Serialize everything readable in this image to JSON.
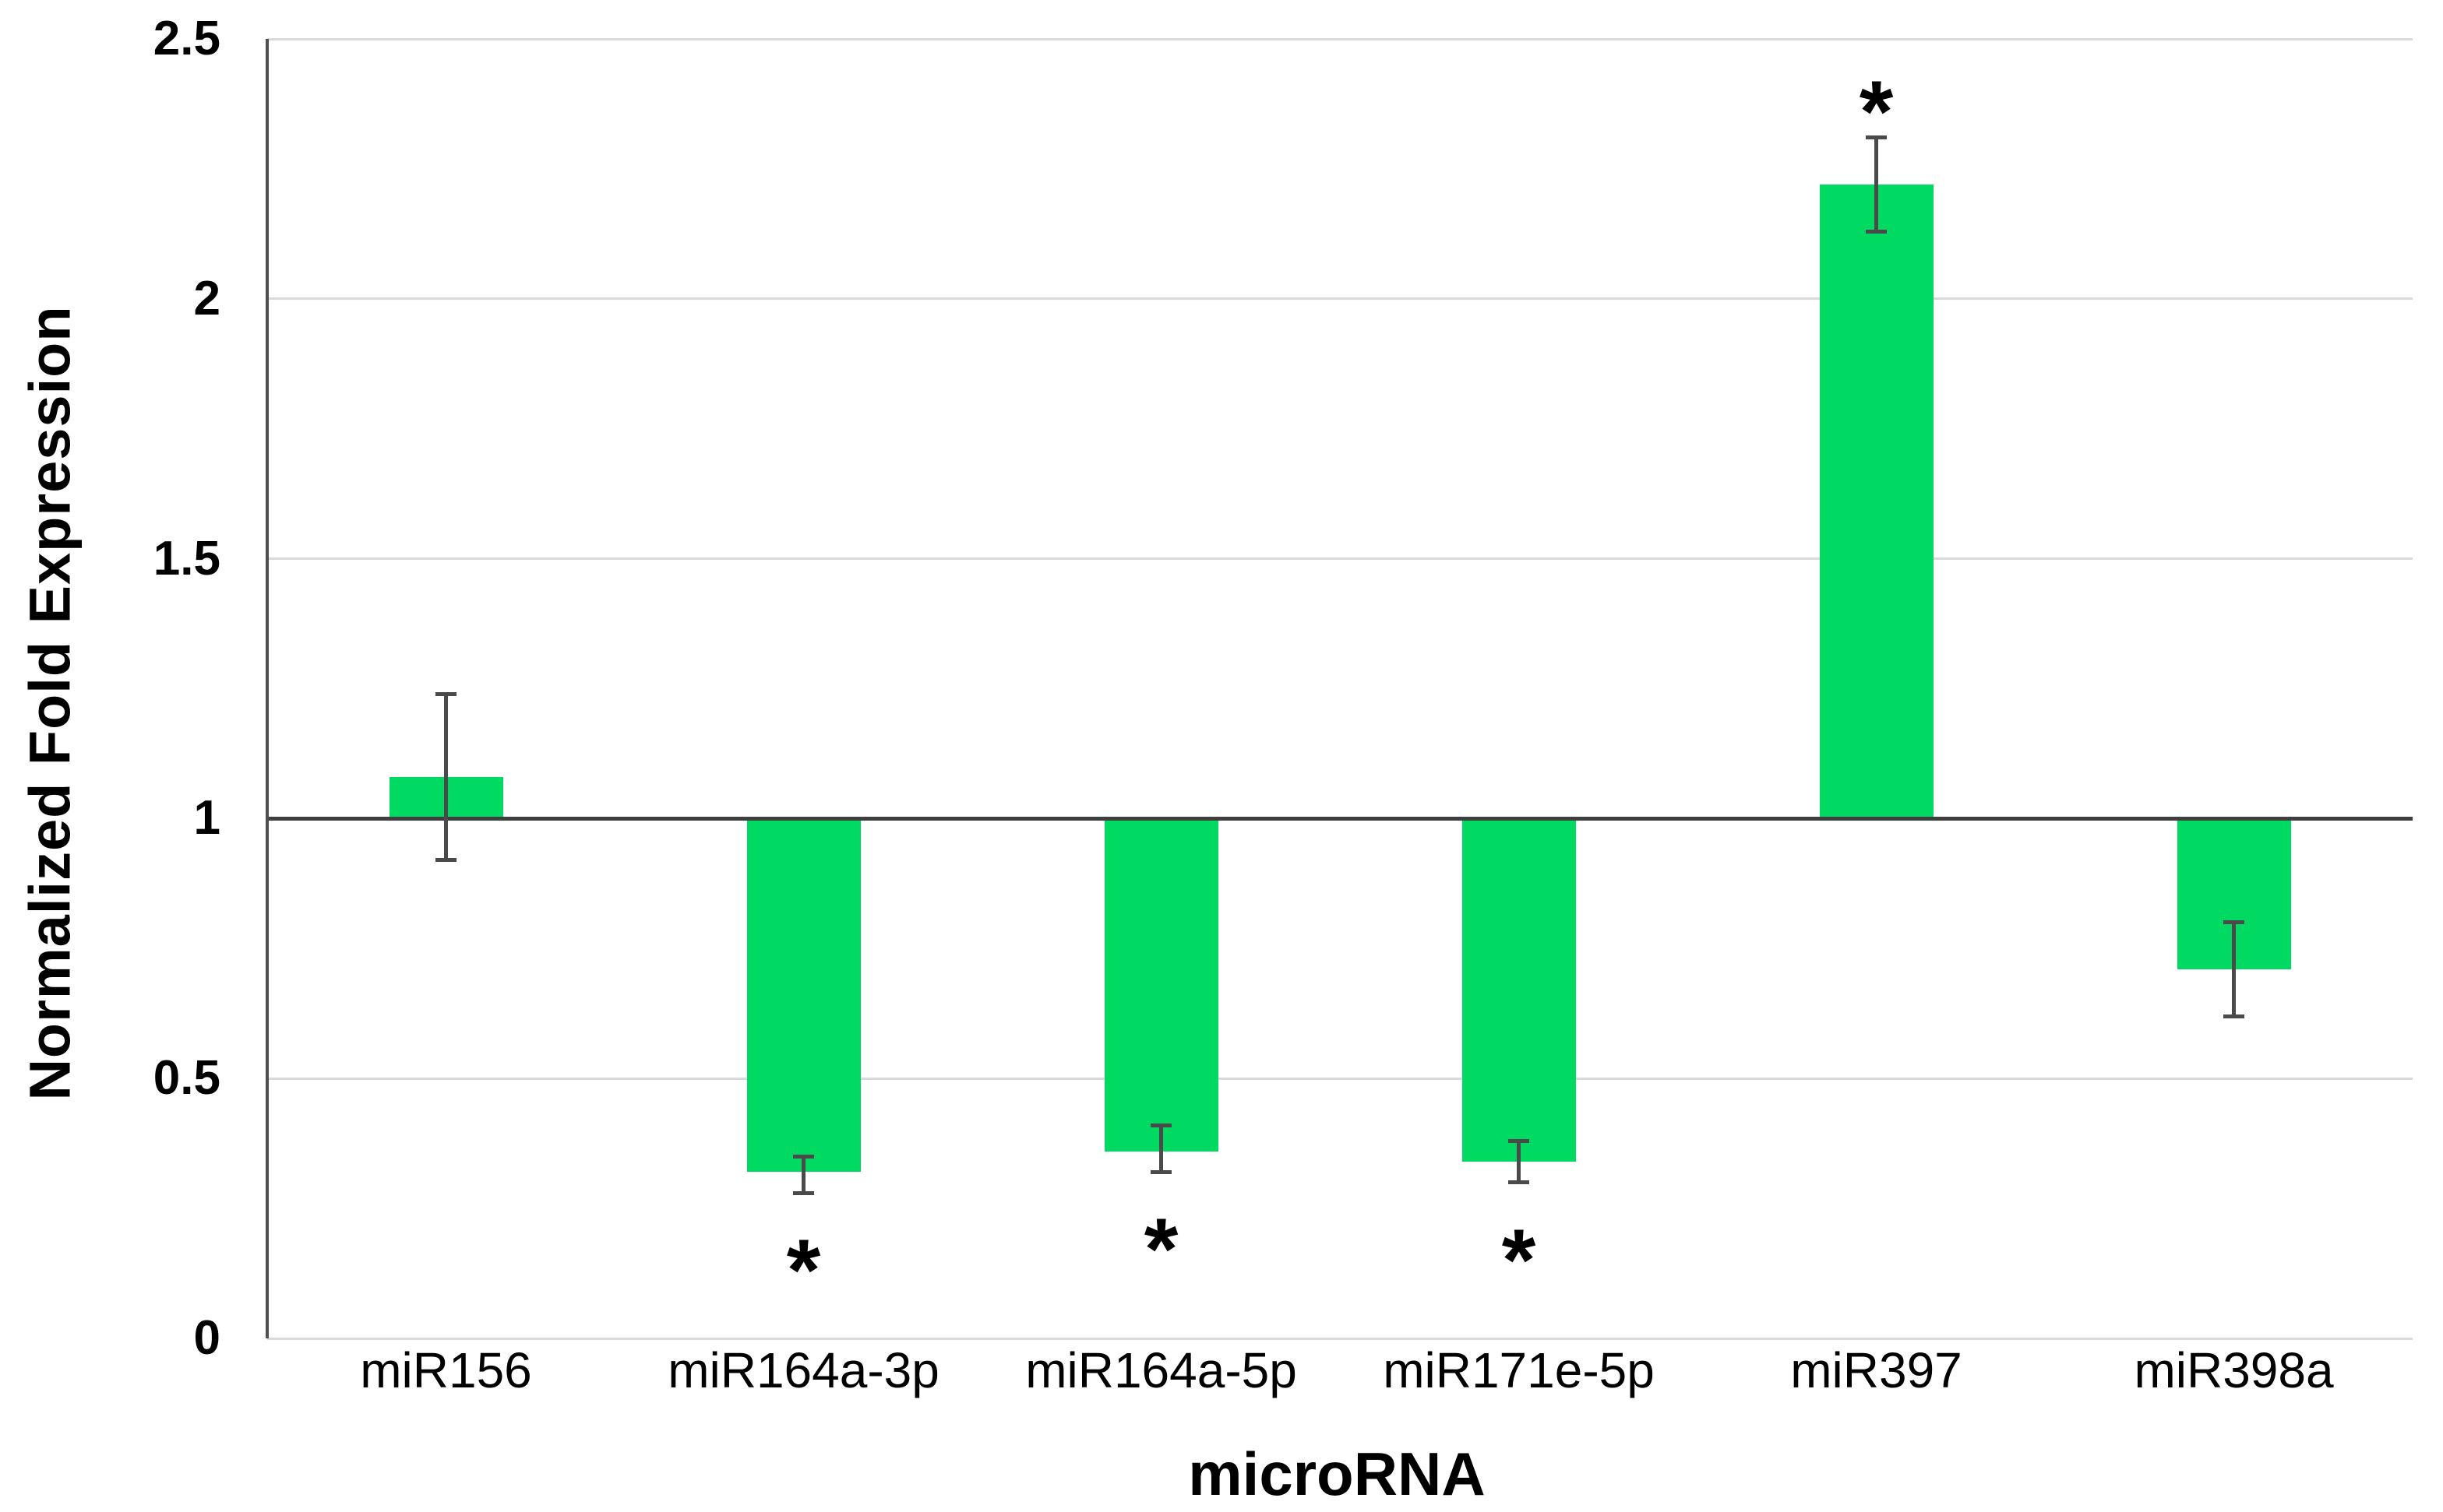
{
  "chart_data": {
    "type": "bar",
    "title": "",
    "xlabel": "microRNA",
    "ylabel": "Normalized Fold Expression",
    "categories": [
      "miR156",
      "miR164a-3p",
      "miR164a-5p",
      "miR171e-5p",
      "miR397",
      "miR398a"
    ],
    "values": [
      1.08,
      0.32,
      0.36,
      0.34,
      2.22,
      0.71
    ],
    "baseline": 1,
    "error_low": [
      0.92,
      0.28,
      0.32,
      0.3,
      2.13,
      0.62
    ],
    "error_high": [
      1.24,
      0.35,
      0.41,
      0.38,
      2.31,
      0.8
    ],
    "significance_marker": "*",
    "significance": [
      "",
      "*",
      "*",
      "*",
      "*",
      ""
    ],
    "significance_position": [
      null,
      "below",
      "below",
      "below",
      "above",
      null
    ],
    "ylim": [
      0,
      2.5
    ],
    "yticks": [
      0,
      0.5,
      1,
      1.5,
      2,
      2.5
    ],
    "ytick_labels": [
      "0",
      "0.5",
      "1",
      "1.5",
      "2",
      "2.5"
    ],
    "grid": "horizontal",
    "legend": "none",
    "bar_color": "#00da63",
    "colors": {
      "gridline": "#d9d9d9",
      "axis_line": "#4f4f4f",
      "baseline_line": "#3f3f3f",
      "error_bar": "#4a4a4a",
      "text": "#000000",
      "background": "#ffffff"
    }
  }
}
